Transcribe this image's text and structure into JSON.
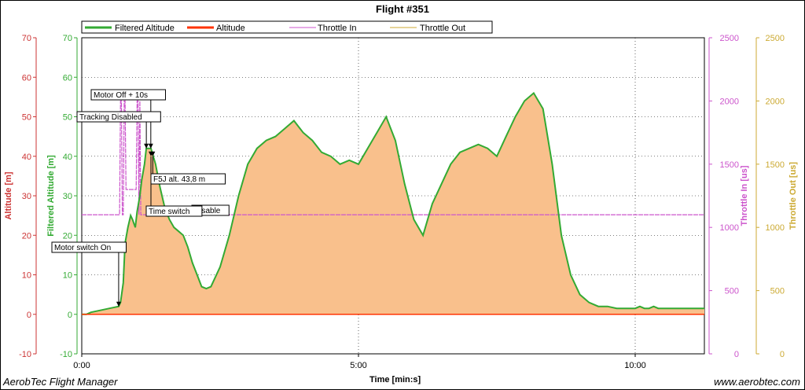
{
  "title": "Flight #351",
  "footer": {
    "left": "AerobTec Flight Manager",
    "right": "www.aerobtec.com"
  },
  "chart_data": {
    "type": "area",
    "title": "Flight #351",
    "xlabel": "Time [min:s]",
    "x_ticks": [
      "0:00",
      "5:00",
      "10:00"
    ],
    "x_range_seconds": [
      0,
      675
    ],
    "legend_position": "top",
    "axes": {
      "altitude": {
        "label": "Altitude [m]",
        "range": [
          -10,
          70
        ],
        "ticks": [
          70,
          60,
          50,
          40,
          30,
          20,
          10,
          0,
          -10
        ],
        "color": "#cc3333"
      },
      "filtered_altitude": {
        "label": "Filtered Altitude [m]",
        "range": [
          -10,
          70
        ],
        "ticks": [
          70,
          60,
          50,
          40,
          30,
          20,
          10,
          0,
          -10
        ],
        "color": "#33aa33"
      },
      "throttle_in": {
        "label": "Throttle In [us]",
        "range": [
          0,
          2500
        ],
        "ticks": [
          2500,
          2000,
          1500,
          1000,
          500,
          0
        ],
        "color": "#cc55cc"
      },
      "throttle_out": {
        "label": "Throttle Out [us]",
        "range": [
          0,
          2500
        ],
        "ticks": [
          2500,
          2000,
          1500,
          1000,
          500,
          0
        ],
        "color": "#ccaa33"
      }
    },
    "series": [
      {
        "name": "Filtered Altitude",
        "color": "#33aa33",
        "fill": "#f9c08c",
        "x": [
          0,
          5,
          10,
          20,
          30,
          40,
          42,
          45,
          47,
          50,
          53,
          55,
          58,
          60,
          63,
          65,
          68,
          70,
          75,
          80,
          85,
          90,
          95,
          100,
          105,
          110,
          115,
          120,
          125,
          130,
          135,
          140,
          150,
          160,
          170,
          180,
          190,
          200,
          210,
          220,
          230,
          240,
          250,
          260,
          270,
          280,
          290,
          300,
          310,
          320,
          330,
          340,
          350,
          360,
          370,
          380,
          390,
          400,
          410,
          420,
          430,
          440,
          450,
          460,
          470,
          480,
          490,
          500,
          510,
          520,
          530,
          540,
          550,
          560,
          570,
          580,
          590,
          600,
          605,
          610,
          615,
          620,
          625,
          630,
          640,
          650,
          660,
          675
        ],
        "y": [
          0,
          0,
          0.5,
          1,
          1.5,
          2,
          3,
          8,
          18,
          22,
          25,
          24,
          22,
          26,
          30,
          34,
          38,
          42,
          42,
          38,
          32,
          27,
          24,
          22,
          21,
          20,
          17,
          13,
          10,
          7,
          6.5,
          7,
          12,
          20,
          30,
          38,
          42,
          44,
          45,
          47,
          49,
          46,
          44,
          41,
          40,
          38,
          39,
          38,
          42,
          46,
          50,
          44,
          33,
          24,
          20,
          28,
          33,
          38,
          41,
          42,
          43,
          42,
          40,
          45,
          50,
          54,
          56,
          52,
          38,
          20,
          10,
          5,
          3,
          2,
          2,
          1.5,
          1.5,
          1.5,
          2,
          1.5,
          1.5,
          2,
          1.5,
          1.5,
          1.5,
          1.5,
          1.5,
          1.5
        ]
      },
      {
        "name": "Altitude",
        "color": "#ff3300",
        "x": [
          0,
          675
        ],
        "y": [
          0,
          0
        ]
      },
      {
        "name": "Throttle In",
        "color": "#cc55cc",
        "axis": "throttle_in",
        "x": [
          0,
          40,
          41,
          42,
          43,
          44,
          45,
          46,
          47,
          48,
          49,
          58,
          59,
          60,
          61,
          62,
          63,
          64,
          675
        ],
        "y": [
          1100,
          1100,
          1100,
          2000,
          2000,
          1100,
          1100,
          2000,
          2000,
          1300,
          1300,
          1300,
          1300,
          2000,
          2000,
          1100,
          2000,
          1100,
          1100
        ]
      },
      {
        "name": "Throttle Out",
        "color": "#ccaa33",
        "axis": "throttle_out",
        "x": [],
        "y": []
      }
    ],
    "annotations": [
      {
        "text": "Motor switch On",
        "x": 40,
        "y": 2
      },
      {
        "text": "Tracking Disabled",
        "x": 70,
        "y": 42
      },
      {
        "text": "Motor Off + 10s",
        "x": 74,
        "y": 42
      },
      {
        "text": "Time switch",
        "x": 75,
        "y": 40
      },
      {
        "text": "Disable",
        "x": 75,
        "y": 26
      },
      {
        "text": "F5J alt. 43,8 m",
        "x": 77,
        "y": 40
      }
    ]
  }
}
